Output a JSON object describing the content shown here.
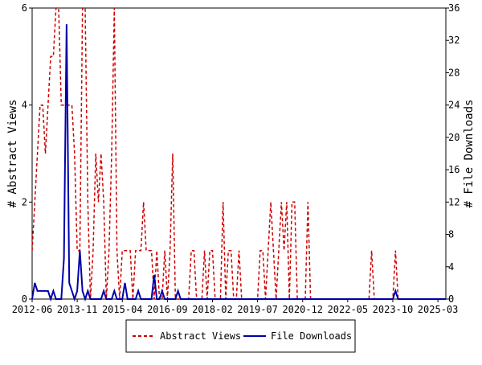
{
  "chart_data": {
    "type": "line",
    "x": [
      "2012-06",
      "2012-07",
      "2012-08",
      "2012-09",
      "2012-10",
      "2012-11",
      "2012-12",
      "2013-01",
      "2013-02",
      "2013-03",
      "2013-04",
      "2013-05",
      "2013-06",
      "2013-07",
      "2013-08",
      "2013-09",
      "2013-10",
      "2013-11",
      "2013-12",
      "2014-01",
      "2014-02",
      "2014-03",
      "2014-04",
      "2014-05",
      "2014-06",
      "2014-07",
      "2014-08",
      "2014-09",
      "2014-10",
      "2014-11",
      "2014-12",
      "2015-01",
      "2015-02",
      "2015-03",
      "2015-04",
      "2015-05",
      "2015-06",
      "2015-07",
      "2015-08",
      "2015-09",
      "2015-10",
      "2015-11",
      "2015-12",
      "2016-01",
      "2016-02",
      "2016-03",
      "2016-04",
      "2016-05",
      "2016-06",
      "2016-07",
      "2016-08",
      "2016-09",
      "2016-10",
      "2016-11",
      "2016-12",
      "2017-01",
      "2017-02",
      "2017-03",
      "2017-04",
      "2017-05",
      "2017-06",
      "2017-07",
      "2017-08",
      "2017-09",
      "2017-10",
      "2017-11",
      "2017-12",
      "2018-01",
      "2018-02",
      "2018-03",
      "2018-04",
      "2018-05",
      "2018-06",
      "2018-07",
      "2018-08",
      "2018-09",
      "2018-10",
      "2018-11",
      "2018-12",
      "2019-01",
      "2019-02",
      "2019-03",
      "2019-04",
      "2019-05",
      "2019-06",
      "2019-07",
      "2019-08",
      "2019-09",
      "2019-10",
      "2019-11",
      "2019-12",
      "2020-01",
      "2020-02",
      "2020-03",
      "2020-04",
      "2020-05",
      "2020-06",
      "2020-07",
      "2020-08",
      "2020-09",
      "2020-10",
      "2020-11",
      "2020-12",
      "2021-01",
      "2021-02",
      "2021-03",
      "2021-04",
      "2021-05",
      "2021-06",
      "2021-07",
      "2021-08",
      "2021-09",
      "2021-10",
      "2021-11",
      "2021-12",
      "2022-01",
      "2022-02",
      "2022-03",
      "2022-04",
      "2022-05",
      "2022-06",
      "2022-07",
      "2022-08",
      "2022-09",
      "2022-10",
      "2022-11",
      "2022-12",
      "2023-01",
      "2023-02",
      "2023-03",
      "2023-04",
      "2023-05",
      "2023-06",
      "2023-07",
      "2023-08",
      "2023-09",
      "2023-10",
      "2023-11",
      "2023-12",
      "2024-01",
      "2024-02",
      "2024-03",
      "2024-04",
      "2024-05",
      "2024-06",
      "2024-07",
      "2024-08",
      "2024-09",
      "2024-10",
      "2024-11",
      "2024-12",
      "2025-01",
      "2025-02",
      "2025-03",
      "2025-04",
      "2025-05",
      "2025-06"
    ],
    "xticks": [
      "2012-06",
      "2013-11",
      "2015-04",
      "2016-09",
      "2018-02",
      "2019-07",
      "2020-12",
      "2022-05",
      "2023-10",
      "2025-03"
    ],
    "y_label": "# Abstract Views",
    "y2_label": "# File Downloads",
    "ylim": [
      0,
      6
    ],
    "yticks": [
      0,
      2,
      4,
      6
    ],
    "y2lim": [
      0,
      36
    ],
    "y2ticks": [
      0,
      4,
      8,
      12,
      16,
      20,
      24,
      28,
      32,
      36
    ],
    "legend": "bottom",
    "series": [
      {
        "name": "Abstract Views",
        "color": "#cc0000",
        "dashed": true,
        "values": [
          1,
          2,
          3,
          4,
          4,
          3,
          4,
          5,
          5,
          6,
          6,
          4,
          4,
          4,
          4,
          4,
          3,
          1,
          1,
          6,
          6,
          2,
          0,
          1,
          3,
          2,
          3,
          2,
          0,
          1,
          3,
          6,
          1,
          0,
          1,
          1,
          1,
          1,
          0,
          1,
          1,
          1,
          2,
          1,
          1,
          1,
          0,
          1,
          0,
          0,
          1,
          0,
          1,
          3,
          0,
          0,
          0,
          0,
          0,
          0,
          1,
          1,
          0,
          0,
          0,
          1,
          0,
          1,
          1,
          0,
          0,
          0,
          2,
          0,
          1,
          1,
          0,
          0,
          1,
          0,
          0,
          0,
          0,
          0,
          0,
          0,
          1,
          1,
          0,
          1,
          2,
          1,
          0,
          1,
          2,
          1,
          2,
          0,
          2,
          2,
          0,
          0,
          0,
          0,
          2,
          0,
          0,
          0,
          0,
          0,
          0,
          0,
          0,
          0,
          0,
          0,
          0,
          0,
          0,
          0,
          0,
          0,
          0,
          0,
          0,
          0,
          0,
          0,
          1,
          0,
          0,
          0,
          0,
          0,
          0,
          0,
          0,
          1,
          0,
          0,
          0,
          0,
          0,
          0,
          0,
          0,
          0,
          0,
          0,
          0,
          0,
          0,
          0,
          0,
          0,
          0,
          0
        ]
      },
      {
        "name": "File Downloads",
        "color": "#0000aa",
        "axis": "y2",
        "values": [
          0,
          2,
          1,
          1,
          1,
          1,
          1,
          0,
          1,
          0,
          0,
          0,
          5,
          34,
          2,
          1,
          0,
          1,
          6,
          1,
          0,
          1,
          0,
          0,
          0,
          0,
          0,
          1,
          0,
          0,
          0,
          1,
          0,
          0,
          0,
          2,
          0,
          0,
          0,
          0,
          1,
          0,
          0,
          0,
          0,
          0,
          3,
          0,
          0,
          1,
          0,
          0,
          0,
          0,
          0,
          1,
          0,
          0,
          0,
          0,
          0,
          0,
          0,
          0,
          0,
          0,
          0,
          0,
          0,
          0,
          0,
          0,
          0,
          0,
          0,
          0,
          0,
          0,
          0,
          0,
          0,
          0,
          0,
          0,
          0,
          0,
          0,
          0,
          0,
          0,
          0,
          0,
          0,
          0,
          0,
          0,
          0,
          0,
          0,
          0,
          0,
          0,
          0,
          0,
          0,
          0,
          0,
          0,
          0,
          0,
          0,
          0,
          0,
          0,
          0,
          0,
          0,
          0,
          0,
          0,
          0,
          0,
          0,
          0,
          0,
          0,
          0,
          0,
          0,
          0,
          0,
          0,
          0,
          0,
          0,
          0,
          0,
          1,
          0,
          0,
          0,
          0,
          0,
          0,
          0,
          0,
          0,
          0,
          0,
          0,
          0,
          0,
          0,
          0,
          0,
          0,
          0
        ]
      }
    ]
  }
}
